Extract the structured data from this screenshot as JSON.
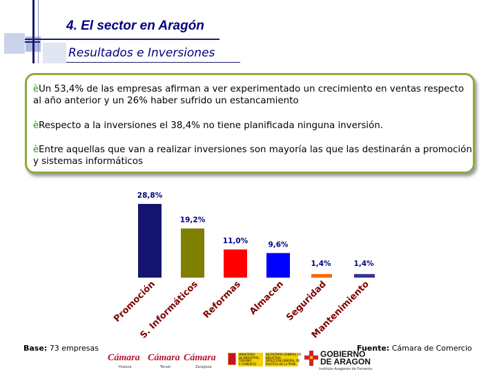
{
  "header": {
    "title": "4. El sector en Aragón",
    "subtitle": "Resultados e Inversiones"
  },
  "bullets": [
    "Un 53,4% de las empresas afirman a ver experimentado un crecimiento en ventas respecto al año anterior y un 26% haber sufrido un estancamiento",
    "Respecto a la inversiones el 38,4% no tiene planificada ninguna inversión.",
    "Entre aquellas que van a realizar inversiones son mayoría las que las destinarán a promoción y sistemas informáticos"
  ],
  "arrow_glyph": "è",
  "colors": {
    "header": "#000080",
    "border": "#8aab3c",
    "bar_colors": [
      "#14146e",
      "#7f7f00",
      "#ff0000",
      "#0000ff",
      "#ff6600",
      "#333399"
    ],
    "category_label": "#7f0000"
  },
  "chart_data": {
    "type": "bar",
    "title": "",
    "xlabel": "",
    "ylabel": "",
    "categories": [
      "Promoción",
      "S. Informáticos",
      "Reformas",
      "Almacen",
      "Seguridad",
      "Mantenimiento"
    ],
    "values": [
      28.8,
      19.2,
      11.0,
      9.6,
      1.4,
      1.4
    ],
    "value_labels": [
      "28,8%",
      "19,2%",
      "11,0%",
      "9,6%",
      "1,4%",
      "1,4%"
    ],
    "ylim": [
      0,
      28.8
    ],
    "grid": false,
    "legend": "none"
  },
  "footer": {
    "base_label": "Base:",
    "base_value": "73 empresas",
    "source_label": "Fuente:",
    "source_value": "Cámara de Comercio"
  },
  "logos": {
    "camara": "Cámara",
    "camara_huesca": "Huesca",
    "camara_teruel": "Teruel",
    "camara_zaragoza": "Zaragoza",
    "gobierno_line1": "GOBIERNO",
    "gobierno_line2": "DE ARAGON",
    "gobierno_dept": "Instituto Aragonés de Fomento",
    "ministerio_lines": [
      "MINISTERIO",
      "DE INDUSTRIA,",
      "TURISMO",
      "Y COMERCIO"
    ],
    "secretaria_lines": [
      "SECRETARÍA GENERAL DE",
      "INDUSTRIA",
      "DIRECCIÓN GENERAL DE",
      "POLÍTICA DE LA PYME"
    ]
  }
}
